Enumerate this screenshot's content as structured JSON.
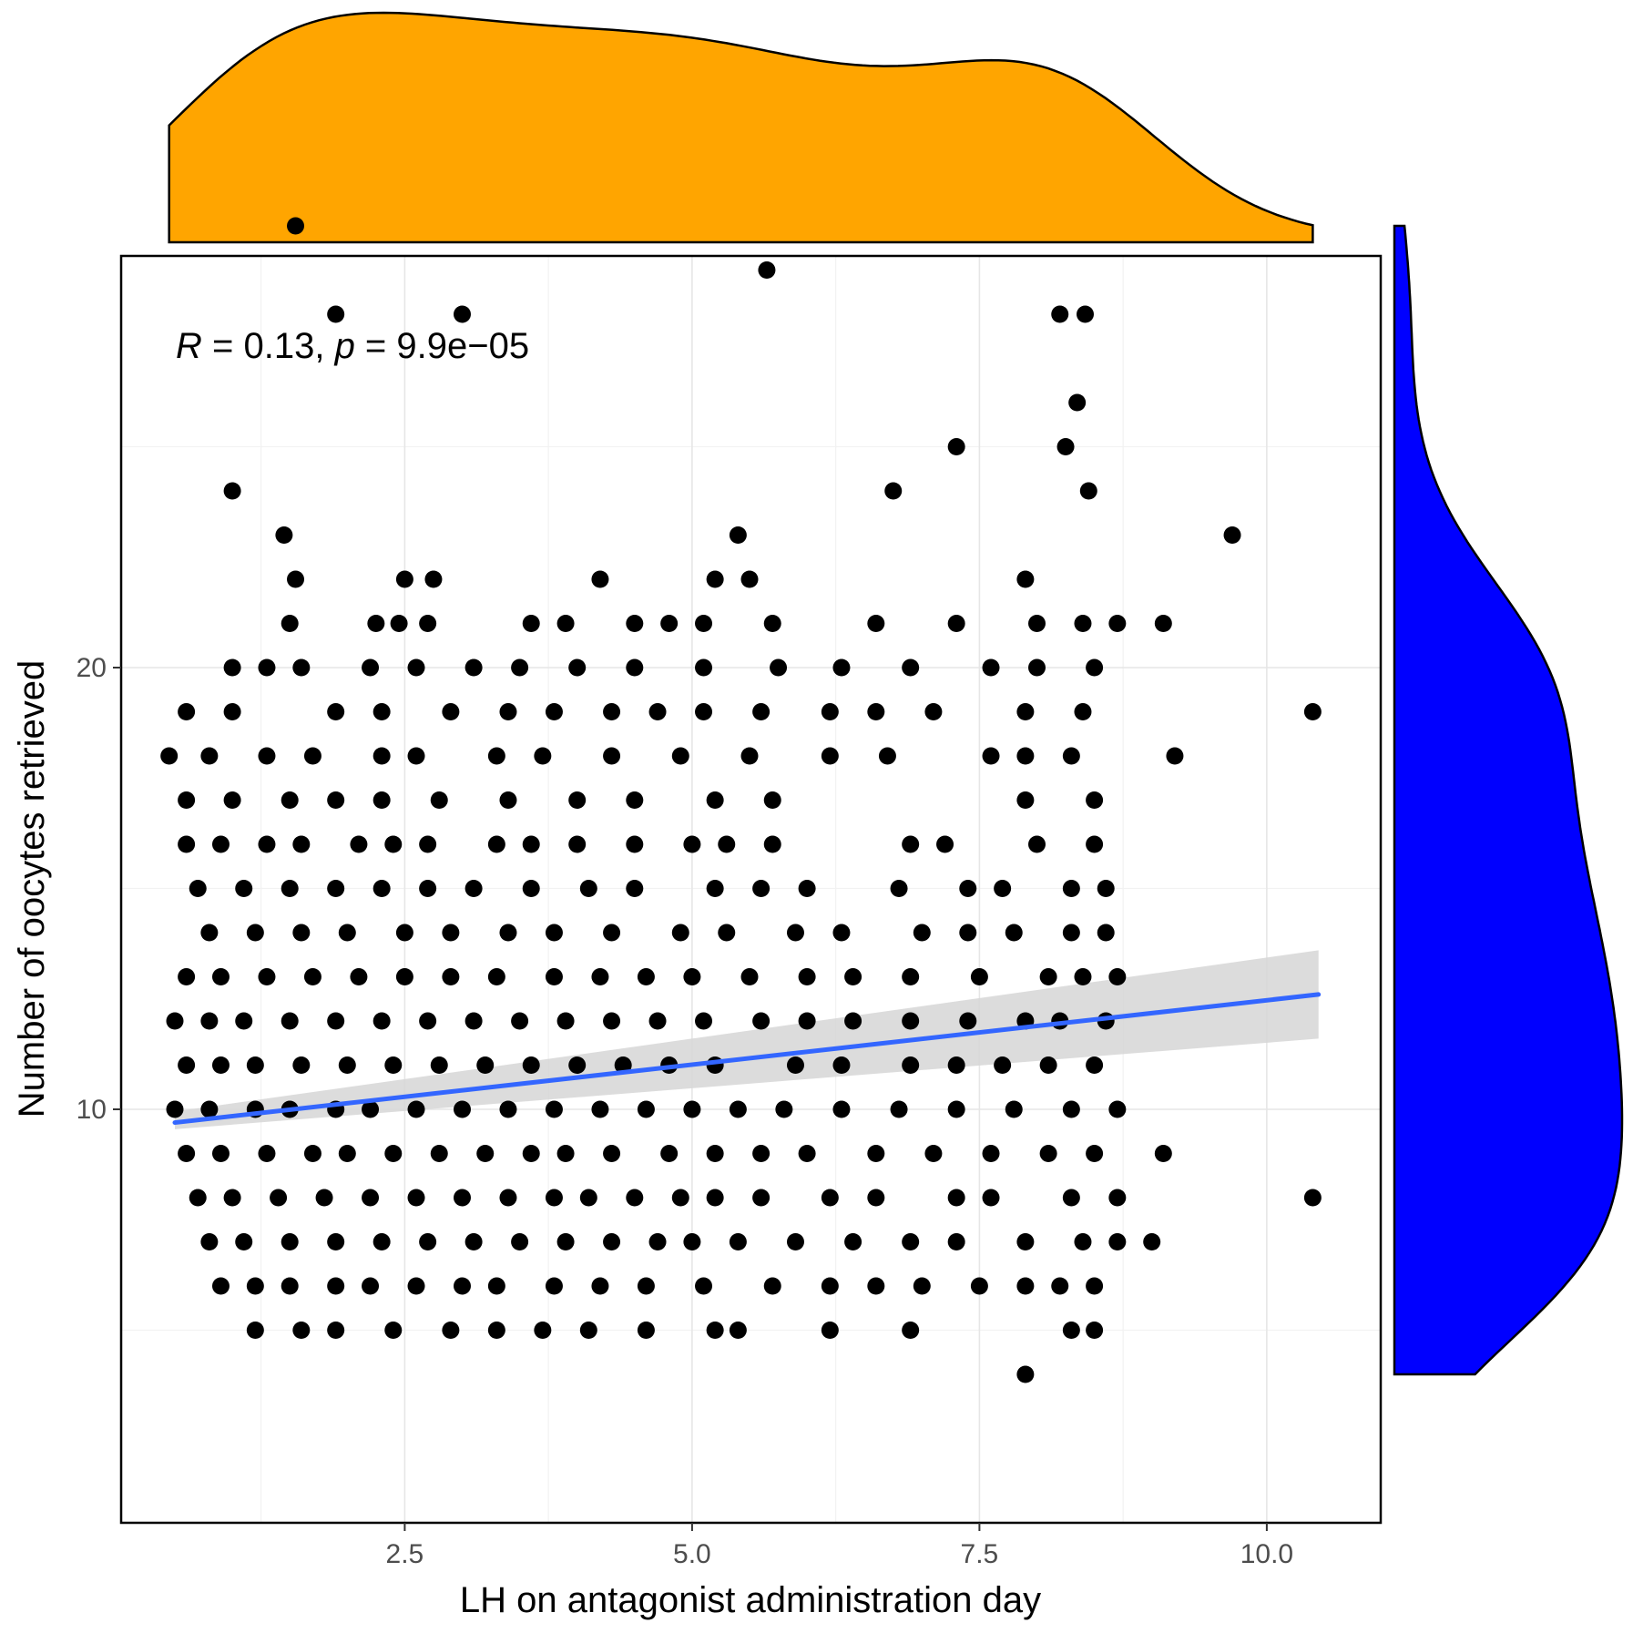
{
  "chart_data": {
    "type": "scatter",
    "xlabel": "LH on antagonist administration day",
    "ylabel": "Number of oocytes retrieved",
    "xlim": [
      0.0,
      10.5
    ],
    "ylim": [
      1.5,
      30.5
    ],
    "x_ticks": [
      2.5,
      5.0,
      7.5,
      10.0
    ],
    "x_tick_labels": [
      "2.5",
      "5.0",
      "7.5",
      "10.0"
    ],
    "y_ticks": [
      10,
      20
    ],
    "y_tick_labels": [
      "10",
      "20"
    ],
    "grid": true,
    "annotation": {
      "r_symbol": "R",
      "r_text": " = 0.13, ",
      "p_symbol": "p",
      "p_text": " = 9.9e−05"
    },
    "regression": {
      "x": [
        0.5,
        10.45
      ],
      "y": [
        9.7,
        12.6
      ],
      "ci_lower_end": [
        9.55,
        11.6
      ],
      "ci_upper_end": [
        9.95,
        13.6
      ],
      "color": "#3366ff",
      "ci_color": "#d6d6d6"
    },
    "points_color": "#000000",
    "points": [
      [
        1.55,
        30
      ],
      [
        1.9,
        28
      ],
      [
        3.0,
        28
      ],
      [
        5.65,
        29
      ],
      [
        8.2,
        28
      ],
      [
        8.42,
        28
      ],
      [
        8.35,
        26
      ],
      [
        7.3,
        25
      ],
      [
        8.25,
        25
      ],
      [
        1.0,
        24
      ],
      [
        6.75,
        24
      ],
      [
        8.45,
        24
      ],
      [
        1.45,
        23
      ],
      [
        5.4,
        23
      ],
      [
        9.7,
        23
      ],
      [
        1.55,
        22
      ],
      [
        2.5,
        22
      ],
      [
        2.75,
        22
      ],
      [
        4.2,
        22
      ],
      [
        5.2,
        22
      ],
      [
        5.5,
        22
      ],
      [
        7.9,
        22
      ],
      [
        1.5,
        21
      ],
      [
        2.25,
        21
      ],
      [
        2.45,
        21
      ],
      [
        2.7,
        21
      ],
      [
        3.6,
        21
      ],
      [
        3.9,
        21
      ],
      [
        4.5,
        21
      ],
      [
        4.8,
        21
      ],
      [
        5.1,
        21
      ],
      [
        5.7,
        21
      ],
      [
        6.6,
        21
      ],
      [
        7.3,
        21
      ],
      [
        8.0,
        21
      ],
      [
        8.4,
        21
      ],
      [
        8.7,
        21
      ],
      [
        9.1,
        21
      ],
      [
        1.0,
        20
      ],
      [
        1.3,
        20
      ],
      [
        1.6,
        20
      ],
      [
        2.2,
        20
      ],
      [
        2.6,
        20
      ],
      [
        3.1,
        20
      ],
      [
        3.5,
        20
      ],
      [
        4.0,
        20
      ],
      [
        4.5,
        20
      ],
      [
        5.1,
        20
      ],
      [
        5.75,
        20
      ],
      [
        6.3,
        20
      ],
      [
        6.9,
        20
      ],
      [
        7.6,
        20
      ],
      [
        8.0,
        20
      ],
      [
        8.5,
        20
      ],
      [
        0.6,
        19
      ],
      [
        1.0,
        19
      ],
      [
        1.9,
        19
      ],
      [
        2.3,
        19
      ],
      [
        2.9,
        19
      ],
      [
        3.4,
        19
      ],
      [
        3.8,
        19
      ],
      [
        4.3,
        19
      ],
      [
        4.7,
        19
      ],
      [
        5.1,
        19
      ],
      [
        5.6,
        19
      ],
      [
        6.2,
        19
      ],
      [
        6.6,
        19
      ],
      [
        7.1,
        19
      ],
      [
        7.9,
        19
      ],
      [
        8.4,
        19
      ],
      [
        10.4,
        19
      ],
      [
        0.45,
        18
      ],
      [
        0.8,
        18
      ],
      [
        1.3,
        18
      ],
      [
        1.7,
        18
      ],
      [
        2.3,
        18
      ],
      [
        2.6,
        18
      ],
      [
        3.3,
        18
      ],
      [
        3.7,
        18
      ],
      [
        4.3,
        18
      ],
      [
        4.9,
        18
      ],
      [
        5.5,
        18
      ],
      [
        6.2,
        18
      ],
      [
        6.7,
        18
      ],
      [
        7.6,
        18
      ],
      [
        7.9,
        18
      ],
      [
        8.3,
        18
      ],
      [
        9.2,
        18
      ],
      [
        0.6,
        17
      ],
      [
        1.0,
        17
      ],
      [
        1.5,
        17
      ],
      [
        1.9,
        17
      ],
      [
        2.3,
        17
      ],
      [
        2.8,
        17
      ],
      [
        3.4,
        17
      ],
      [
        4.0,
        17
      ],
      [
        4.5,
        17
      ],
      [
        5.2,
        17
      ],
      [
        5.7,
        17
      ],
      [
        7.9,
        17
      ],
      [
        8.5,
        17
      ],
      [
        0.6,
        16
      ],
      [
        0.9,
        16
      ],
      [
        1.3,
        16
      ],
      [
        1.6,
        16
      ],
      [
        2.1,
        16
      ],
      [
        2.4,
        16
      ],
      [
        2.7,
        16
      ],
      [
        3.3,
        16
      ],
      [
        3.6,
        16
      ],
      [
        4.0,
        16
      ],
      [
        4.5,
        16
      ],
      [
        5.0,
        16
      ],
      [
        5.3,
        16
      ],
      [
        5.7,
        16
      ],
      [
        6.9,
        16
      ],
      [
        7.2,
        16
      ],
      [
        8.0,
        16
      ],
      [
        8.5,
        16
      ],
      [
        0.7,
        15
      ],
      [
        1.1,
        15
      ],
      [
        1.5,
        15
      ],
      [
        1.9,
        15
      ],
      [
        2.3,
        15
      ],
      [
        2.7,
        15
      ],
      [
        3.1,
        15
      ],
      [
        3.6,
        15
      ],
      [
        4.1,
        15
      ],
      [
        4.5,
        15
      ],
      [
        5.2,
        15
      ],
      [
        5.6,
        15
      ],
      [
        6.0,
        15
      ],
      [
        6.8,
        15
      ],
      [
        7.4,
        15
      ],
      [
        7.7,
        15
      ],
      [
        8.3,
        15
      ],
      [
        8.6,
        15
      ],
      [
        0.8,
        14
      ],
      [
        1.2,
        14
      ],
      [
        1.6,
        14
      ],
      [
        2.0,
        14
      ],
      [
        2.5,
        14
      ],
      [
        2.9,
        14
      ],
      [
        3.4,
        14
      ],
      [
        3.8,
        14
      ],
      [
        4.3,
        14
      ],
      [
        4.9,
        14
      ],
      [
        5.3,
        14
      ],
      [
        5.9,
        14
      ],
      [
        6.3,
        14
      ],
      [
        7.0,
        14
      ],
      [
        7.4,
        14
      ],
      [
        7.8,
        14
      ],
      [
        8.3,
        14
      ],
      [
        8.6,
        14
      ],
      [
        0.6,
        13
      ],
      [
        0.9,
        13
      ],
      [
        1.3,
        13
      ],
      [
        1.7,
        13
      ],
      [
        2.1,
        13
      ],
      [
        2.5,
        13
      ],
      [
        2.9,
        13
      ],
      [
        3.3,
        13
      ],
      [
        3.8,
        13
      ],
      [
        4.2,
        13
      ],
      [
        4.6,
        13
      ],
      [
        5.0,
        13
      ],
      [
        5.5,
        13
      ],
      [
        6.0,
        13
      ],
      [
        6.4,
        13
      ],
      [
        6.9,
        13
      ],
      [
        7.5,
        13
      ],
      [
        8.1,
        13
      ],
      [
        8.4,
        13
      ],
      [
        8.7,
        13
      ],
      [
        0.5,
        12
      ],
      [
        0.8,
        12
      ],
      [
        1.1,
        12
      ],
      [
        1.5,
        12
      ],
      [
        1.9,
        12
      ],
      [
        2.3,
        12
      ],
      [
        2.7,
        12
      ],
      [
        3.1,
        12
      ],
      [
        3.5,
        12
      ],
      [
        3.9,
        12
      ],
      [
        4.3,
        12
      ],
      [
        4.7,
        12
      ],
      [
        5.1,
        12
      ],
      [
        5.6,
        12
      ],
      [
        6.0,
        12
      ],
      [
        6.4,
        12
      ],
      [
        6.9,
        12
      ],
      [
        7.4,
        12
      ],
      [
        7.9,
        12
      ],
      [
        8.2,
        12
      ],
      [
        8.6,
        12
      ],
      [
        0.6,
        11
      ],
      [
        0.9,
        11
      ],
      [
        1.2,
        11
      ],
      [
        1.6,
        11
      ],
      [
        2.0,
        11
      ],
      [
        2.4,
        11
      ],
      [
        2.8,
        11
      ],
      [
        3.2,
        11
      ],
      [
        3.6,
        11
      ],
      [
        4.0,
        11
      ],
      [
        4.4,
        11
      ],
      [
        4.8,
        11
      ],
      [
        5.2,
        11
      ],
      [
        5.9,
        11
      ],
      [
        6.3,
        11
      ],
      [
        6.9,
        11
      ],
      [
        7.3,
        11
      ],
      [
        7.7,
        11
      ],
      [
        8.1,
        11
      ],
      [
        8.5,
        11
      ],
      [
        0.5,
        10
      ],
      [
        0.8,
        10
      ],
      [
        1.2,
        10
      ],
      [
        1.5,
        10
      ],
      [
        1.9,
        10
      ],
      [
        2.2,
        10
      ],
      [
        2.6,
        10
      ],
      [
        3.0,
        10
      ],
      [
        3.4,
        10
      ],
      [
        3.8,
        10
      ],
      [
        4.2,
        10
      ],
      [
        4.6,
        10
      ],
      [
        5.0,
        10
      ],
      [
        5.4,
        10
      ],
      [
        5.8,
        10
      ],
      [
        6.3,
        10
      ],
      [
        6.8,
        10
      ],
      [
        7.3,
        10
      ],
      [
        7.8,
        10
      ],
      [
        8.3,
        10
      ],
      [
        8.7,
        10
      ],
      [
        0.6,
        9
      ],
      [
        0.9,
        9
      ],
      [
        1.3,
        9
      ],
      [
        1.7,
        9
      ],
      [
        2.0,
        9
      ],
      [
        2.4,
        9
      ],
      [
        2.8,
        9
      ],
      [
        3.2,
        9
      ],
      [
        3.6,
        9
      ],
      [
        3.9,
        9
      ],
      [
        4.3,
        9
      ],
      [
        4.8,
        9
      ],
      [
        5.2,
        9
      ],
      [
        5.6,
        9
      ],
      [
        6.0,
        9
      ],
      [
        6.6,
        9
      ],
      [
        7.1,
        9
      ],
      [
        7.6,
        9
      ],
      [
        8.1,
        9
      ],
      [
        8.5,
        9
      ],
      [
        9.1,
        9
      ],
      [
        0.7,
        8
      ],
      [
        1.0,
        8
      ],
      [
        1.4,
        8
      ],
      [
        1.8,
        8
      ],
      [
        2.2,
        8
      ],
      [
        2.6,
        8
      ],
      [
        3.0,
        8
      ],
      [
        3.4,
        8
      ],
      [
        3.8,
        8
      ],
      [
        4.1,
        8
      ],
      [
        4.5,
        8
      ],
      [
        4.9,
        8
      ],
      [
        5.2,
        8
      ],
      [
        5.6,
        8
      ],
      [
        6.2,
        8
      ],
      [
        6.6,
        8
      ],
      [
        7.3,
        8
      ],
      [
        7.6,
        8
      ],
      [
        8.3,
        8
      ],
      [
        8.7,
        8
      ],
      [
        10.4,
        8
      ],
      [
        0.8,
        7
      ],
      [
        1.1,
        7
      ],
      [
        1.5,
        7
      ],
      [
        1.9,
        7
      ],
      [
        2.3,
        7
      ],
      [
        2.7,
        7
      ],
      [
        3.1,
        7
      ],
      [
        3.5,
        7
      ],
      [
        3.9,
        7
      ],
      [
        4.3,
        7
      ],
      [
        4.7,
        7
      ],
      [
        5.0,
        7
      ],
      [
        5.4,
        7
      ],
      [
        5.9,
        7
      ],
      [
        6.4,
        7
      ],
      [
        6.9,
        7
      ],
      [
        7.3,
        7
      ],
      [
        7.9,
        7
      ],
      [
        8.4,
        7
      ],
      [
        8.7,
        7
      ],
      [
        9.0,
        7
      ],
      [
        0.9,
        6
      ],
      [
        1.2,
        6
      ],
      [
        1.5,
        6
      ],
      [
        1.9,
        6
      ],
      [
        2.2,
        6
      ],
      [
        2.6,
        6
      ],
      [
        3.0,
        6
      ],
      [
        3.3,
        6
      ],
      [
        3.8,
        6
      ],
      [
        4.2,
        6
      ],
      [
        4.6,
        6
      ],
      [
        5.1,
        6
      ],
      [
        5.7,
        6
      ],
      [
        6.2,
        6
      ],
      [
        6.6,
        6
      ],
      [
        7.0,
        6
      ],
      [
        7.5,
        6
      ],
      [
        7.9,
        6
      ],
      [
        8.2,
        6
      ],
      [
        8.5,
        6
      ],
      [
        1.2,
        5
      ],
      [
        1.6,
        5
      ],
      [
        1.9,
        5
      ],
      [
        2.4,
        5
      ],
      [
        2.9,
        5
      ],
      [
        3.3,
        5
      ],
      [
        3.7,
        5
      ],
      [
        4.1,
        5
      ],
      [
        4.6,
        5
      ],
      [
        5.2,
        5
      ],
      [
        5.4,
        5
      ],
      [
        6.2,
        5
      ],
      [
        6.9,
        5
      ],
      [
        8.3,
        5
      ],
      [
        8.5,
        5
      ],
      [
        7.9,
        4
      ]
    ]
  }
}
